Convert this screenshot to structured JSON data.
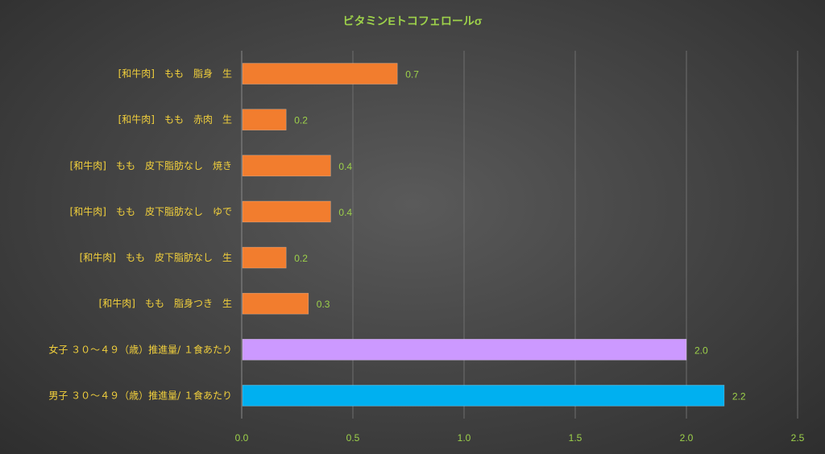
{
  "chart_data": {
    "type": "bar",
    "orientation": "horizontal",
    "title": "ビタミンEトコフェロールσ",
    "xlabel": "",
    "ylabel": "",
    "xlim": [
      0,
      2.5
    ],
    "x_ticks": [
      "0.0",
      "0.5",
      "1.0",
      "1.5",
      "2.0",
      "2.5"
    ],
    "grid": "vertical gridlines",
    "legend": "none",
    "categories": [
      "[和牛肉]　もも　脂身　生",
      "[和牛肉]　もも　赤肉　生",
      "[和牛肉]　もも　皮下脂肪なし　焼き",
      "[和牛肉]　もも　皮下脂肪なし　ゆで",
      "[和牛肉]　もも　皮下脂肪なし　生",
      "[和牛肉]　もも　脂身つき　生",
      "女子 ３０～４９（歳）推進量/ １食あたり",
      "男子 ３０～４９（歳）推進量/ １食あたり"
    ],
    "values": [
      0.7,
      0.2,
      0.4,
      0.4,
      0.2,
      0.3,
      2.0,
      2.17
    ],
    "value_labels": [
      "0.7",
      "0.2",
      "0.4",
      "0.4",
      "0.2",
      "0.3",
      "2.0",
      "2.2"
    ],
    "bar_colors": [
      "#f27d2e",
      "#f27d2e",
      "#f27d2e",
      "#f27d2e",
      "#f27d2e",
      "#f27d2e",
      "#cc99ff",
      "#00b0f0"
    ]
  },
  "colors": {
    "title": "#9dd14a",
    "category_label": "#f2d03c",
    "value_label": "#9dd14a",
    "tick_label": "#9dd14a",
    "gridline": "#6e6e6e",
    "axis": "#8a8a8a"
  }
}
